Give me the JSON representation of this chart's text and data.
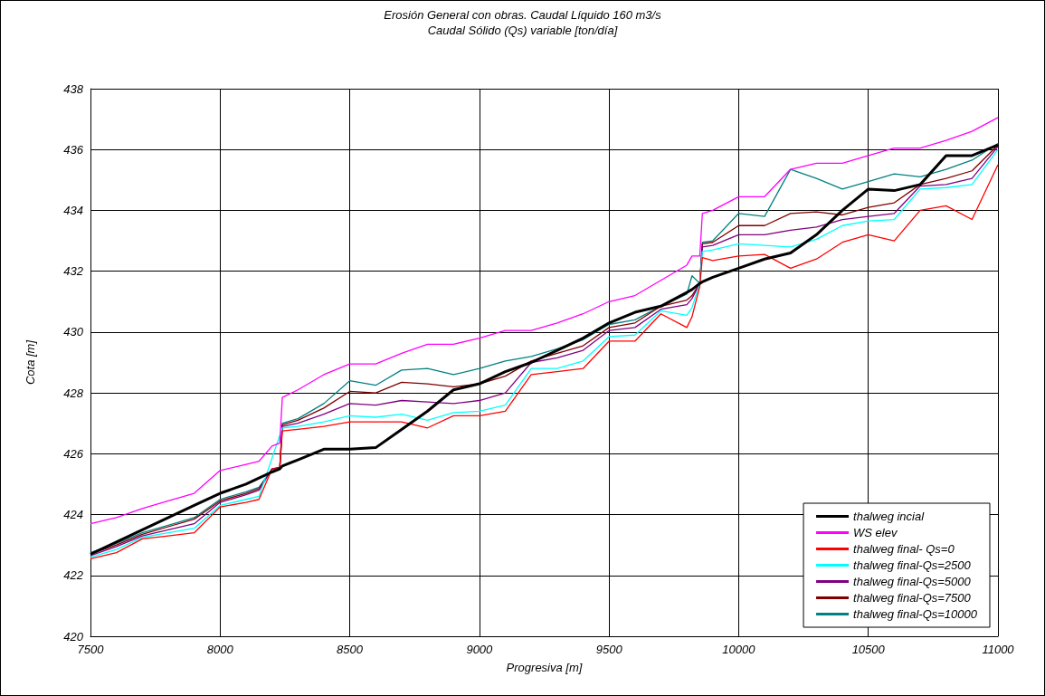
{
  "chart_data": {
    "type": "line",
    "title": "Erosión General con obras. Caudal Líquido 160 m3/s",
    "subtitle": "Caudal Sólido (Qs) variable [ton/día]",
    "xlabel": "Progresiva [m]",
    "ylabel": "Cota [m]",
    "x": [
      7500,
      7600,
      7700,
      7800,
      7900,
      8000,
      8100,
      8150,
      8200,
      8230,
      8240,
      8300,
      8400,
      8500,
      8600,
      8700,
      8800,
      8900,
      9000,
      9100,
      9200,
      9300,
      9400,
      9500,
      9600,
      9700,
      9800,
      9820,
      9850,
      9860,
      9900,
      10000,
      10100,
      10200,
      10300,
      10400,
      10500,
      10600,
      10700,
      10800,
      10900,
      11000
    ],
    "xlim": [
      7500,
      11000
    ],
    "xticks": [
      7500,
      8000,
      8500,
      9000,
      9500,
      10000,
      10500,
      11000
    ],
    "ylim": [
      420,
      438
    ],
    "yticks": [
      420,
      422,
      424,
      426,
      428,
      430,
      432,
      434,
      436,
      438
    ],
    "grid": true,
    "legend": "bottom right",
    "marker": "none",
    "line_style": "solid",
    "series": [
      {
        "name": "thalweg incial",
        "color": "#000000",
        "values": [
          422.7,
          423.1,
          423.5,
          423.9,
          424.3,
          424.7,
          425.0,
          425.2,
          425.4,
          425.5,
          425.6,
          425.8,
          426.15,
          426.15,
          426.2,
          426.8,
          427.4,
          428.1,
          428.3,
          428.7,
          429.0,
          429.4,
          429.8,
          430.3,
          430.65,
          430.85,
          431.3,
          431.4,
          431.6,
          431.65,
          431.8,
          432.1,
          432.4,
          432.6,
          433.2,
          434.0,
          434.7,
          434.65,
          434.85,
          435.8,
          435.8,
          436.15
        ]
      },
      {
        "name": "WS elev",
        "color": "#ff00ff",
        "values": [
          423.7,
          423.9,
          424.2,
          424.45,
          424.7,
          425.45,
          425.65,
          425.75,
          426.25,
          426.35,
          427.85,
          428.1,
          428.6,
          428.95,
          428.95,
          429.3,
          429.6,
          429.6,
          429.8,
          430.05,
          430.05,
          430.3,
          430.6,
          431.0,
          431.2,
          431.7,
          432.2,
          432.5,
          432.5,
          433.9,
          434.0,
          434.45,
          434.45,
          435.35,
          435.55,
          435.55,
          435.8,
          436.05,
          436.05,
          436.3,
          436.6,
          437.05
        ]
      },
      {
        "name": "thalweg final- Qs=0",
        "color": "#ff0000",
        "values": [
          422.55,
          422.75,
          423.2,
          423.3,
          423.4,
          424.25,
          424.4,
          424.5,
          425.5,
          425.5,
          426.75,
          426.8,
          426.9,
          427.05,
          427.05,
          427.05,
          426.85,
          427.25,
          427.25,
          427.4,
          428.6,
          428.7,
          428.8,
          429.7,
          429.7,
          430.6,
          430.15,
          430.5,
          431.5,
          432.45,
          432.35,
          432.5,
          432.55,
          432.1,
          432.4,
          432.95,
          433.2,
          433.0,
          434.0,
          434.15,
          433.7,
          435.5
        ]
      },
      {
        "name": "thalweg final-Qs=2500",
        "color": "#00ffff",
        "values": [
          422.6,
          422.85,
          423.25,
          423.4,
          423.55,
          424.3,
          424.5,
          424.6,
          null,
          null,
          426.85,
          426.9,
          427.05,
          427.25,
          427.2,
          427.3,
          427.1,
          427.35,
          427.4,
          427.6,
          428.8,
          428.8,
          429.05,
          429.85,
          429.9,
          430.7,
          430.55,
          430.8,
          431.6,
          432.65,
          432.7,
          432.9,
          432.85,
          432.8,
          433.05,
          433.5,
          433.65,
          433.7,
          434.7,
          434.75,
          434.85,
          436.0
        ]
      },
      {
        "name": "thalweg final-Qs=5000",
        "color": "#800080",
        "values": [
          422.65,
          422.95,
          423.3,
          423.5,
          423.7,
          424.4,
          424.65,
          424.8,
          425.5,
          425.5,
          426.9,
          427.0,
          427.3,
          427.65,
          427.6,
          427.75,
          427.7,
          427.65,
          427.75,
          428.0,
          429.0,
          429.15,
          429.4,
          430.05,
          430.15,
          430.75,
          430.9,
          431.1,
          431.6,
          432.8,
          432.85,
          433.2,
          433.2,
          433.35,
          433.45,
          433.7,
          433.8,
          433.9,
          434.8,
          434.85,
          435.05,
          436.1
        ]
      },
      {
        "name": "thalweg final-Qs=7500",
        "color": "#800000",
        "values": [
          422.7,
          423.0,
          423.35,
          423.6,
          423.85,
          424.45,
          424.7,
          424.85,
          425.5,
          425.55,
          426.95,
          427.1,
          427.5,
          428.05,
          428.0,
          428.35,
          428.3,
          428.2,
          428.3,
          428.55,
          429.05,
          429.3,
          429.55,
          430.15,
          430.3,
          430.85,
          431.05,
          431.2,
          431.6,
          432.9,
          432.95,
          433.5,
          433.5,
          433.9,
          433.95,
          433.85,
          434.1,
          434.25,
          434.85,
          435.05,
          435.3,
          436.15
        ]
      },
      {
        "name": "thalweg final-Qs=10000",
        "color": "#008080",
        "values": [
          422.75,
          423.05,
          423.4,
          423.65,
          423.9,
          424.5,
          424.75,
          424.9,
          425.5,
          425.55,
          427.0,
          427.15,
          427.65,
          428.4,
          428.25,
          428.75,
          428.8,
          428.6,
          428.8,
          429.05,
          429.2,
          429.45,
          429.75,
          430.25,
          430.4,
          430.85,
          431.25,
          431.85,
          431.6,
          432.95,
          433.0,
          433.9,
          433.8,
          435.35,
          435.05,
          434.7,
          434.95,
          435.2,
          435.1,
          435.35,
          435.65,
          436.2
        ]
      }
    ]
  }
}
